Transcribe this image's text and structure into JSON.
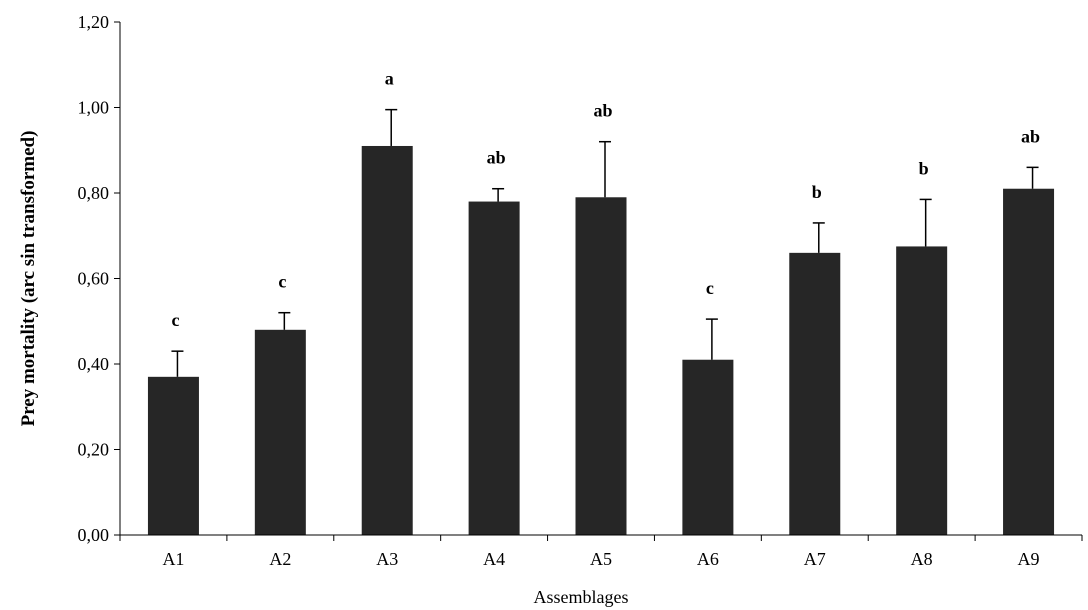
{
  "chart_data": {
    "type": "bar",
    "xlabel": "Assemblages",
    "ylabel": "Prey mortality (arc sin transformed)",
    "ylim": [
      0,
      1.2
    ],
    "yticks": [
      "0,00",
      "0,20",
      "0,40",
      "0,60",
      "0,80",
      "1,00",
      "1,20"
    ],
    "yticks_values": [
      0,
      0.2,
      0.4,
      0.6,
      0.8,
      1.0,
      1.2
    ],
    "categories": [
      "A1",
      "A2",
      "A3",
      "A4",
      "A5",
      "A6",
      "A7",
      "A8",
      "A9"
    ],
    "values": [
      0.37,
      0.48,
      0.91,
      0.78,
      0.79,
      0.41,
      0.66,
      0.675,
      0.81
    ],
    "errors": [
      0.06,
      0.04,
      0.085,
      0.03,
      0.13,
      0.095,
      0.07,
      0.11,
      0.05
    ],
    "significance_labels": [
      "c",
      "c",
      "a",
      "ab",
      "ab",
      "c",
      "b",
      "b",
      "ab"
    ],
    "bar_color": "#262626",
    "grid": false
  }
}
